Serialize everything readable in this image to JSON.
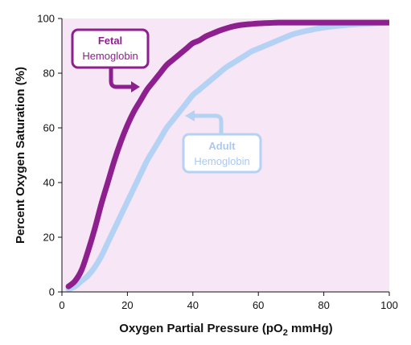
{
  "chart_data": {
    "type": "line",
    "xlabel": "Oxygen Partial Pressure (pO₂ mmHg)",
    "xlabel_parts": {
      "main": "Oxygen Partial Pressure (pO",
      "sub": "2",
      "end": " mmHg)"
    },
    "ylabel": "Percent Oxygen Saturation (%)",
    "xlim": [
      0,
      100
    ],
    "ylim": [
      0,
      100
    ],
    "x_ticks": [
      0,
      20,
      40,
      60,
      80,
      100
    ],
    "y_ticks": [
      0,
      20,
      40,
      60,
      80,
      100
    ],
    "grid": false,
    "background_color": "#f7e6f5",
    "series": [
      {
        "name": "Fetal Hemoglobin",
        "label_lines": [
          "Fetal",
          "Hemoglobin"
        ],
        "color": "#8e1f8e",
        "x": [
          2,
          4,
          6,
          8,
          10,
          12,
          14,
          16,
          18,
          20,
          22,
          24,
          26,
          28,
          30,
          32,
          34,
          36,
          38,
          40,
          42,
          44,
          46,
          48,
          50,
          52,
          54,
          56,
          58,
          60,
          62,
          64,
          66,
          70,
          80,
          90,
          100
        ],
        "y": [
          2,
          4,
          8,
          15,
          23,
          32,
          40,
          48,
          55,
          61,
          66,
          70,
          74,
          77,
          80,
          83,
          85,
          87,
          89,
          91,
          92,
          93.5,
          94.5,
          95.5,
          96.3,
          97,
          97.5,
          97.8,
          98,
          98.2,
          98.3,
          98.4,
          98.5,
          98.5,
          98.5,
          98.5,
          98.5
        ]
      },
      {
        "name": "Adult Hemoglobin",
        "label_lines": [
          "Adult",
          "Hemoglobin"
        ],
        "color": "#b4d2f4",
        "x": [
          2,
          4,
          6,
          8,
          10,
          12,
          14,
          16,
          18,
          20,
          22,
          24,
          26,
          28,
          30,
          32,
          34,
          36,
          38,
          40,
          42,
          44,
          46,
          48,
          50,
          52,
          54,
          56,
          58,
          60,
          62,
          64,
          66,
          68,
          70,
          72,
          74,
          76,
          78,
          80,
          85,
          90,
          95,
          100
        ],
        "y": [
          1,
          2,
          4,
          6,
          9,
          13,
          18,
          23,
          28,
          33,
          38,
          43,
          48,
          52,
          56,
          60,
          63,
          66,
          69,
          72,
          74,
          76,
          78,
          80,
          82,
          83.5,
          85,
          86.5,
          88,
          89,
          90,
          91,
          92,
          93,
          94,
          94.7,
          95.3,
          95.8,
          96.3,
          96.7,
          97.4,
          97.9,
          98.2,
          98.5
        ]
      }
    ]
  }
}
